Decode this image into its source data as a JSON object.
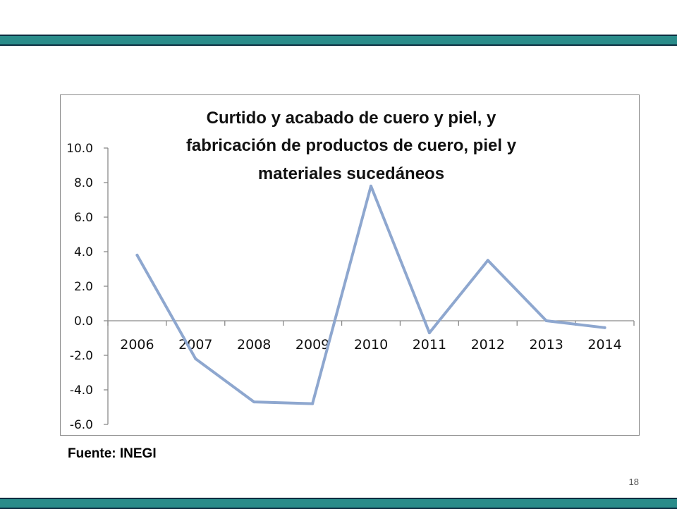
{
  "slide": {
    "source": "Fuente: INEGI",
    "page_number": "18",
    "accent_color": "#2a8c8a",
    "accent_border_color": "#0b2d40"
  },
  "chart_data": {
    "type": "line",
    "title_lines": [
      "Curtido y acabado de cuero y piel, y",
      "fabricación de productos de cuero, piel y",
      "materiales sucedáneos"
    ],
    "categories": [
      "2006",
      "2007",
      "2008",
      "2009",
      "2010",
      "2011",
      "2012",
      "2013",
      "2014"
    ],
    "series": [
      {
        "values": [
          3.8,
          -2.2,
          -4.7,
          -4.8,
          7.8,
          -0.7,
          3.5,
          0.0,
          -0.4
        ],
        "color": "#8ea7cf"
      }
    ],
    "y_ticks": [
      "10.0",
      "8.0",
      "6.0",
      "4.0",
      "2.0",
      "0.0",
      "-2.0",
      "-4.0",
      "-6.0"
    ],
    "ylim": [
      -6,
      10
    ],
    "xlabel": "",
    "ylabel": "",
    "grid": false,
    "legend": "none"
  }
}
